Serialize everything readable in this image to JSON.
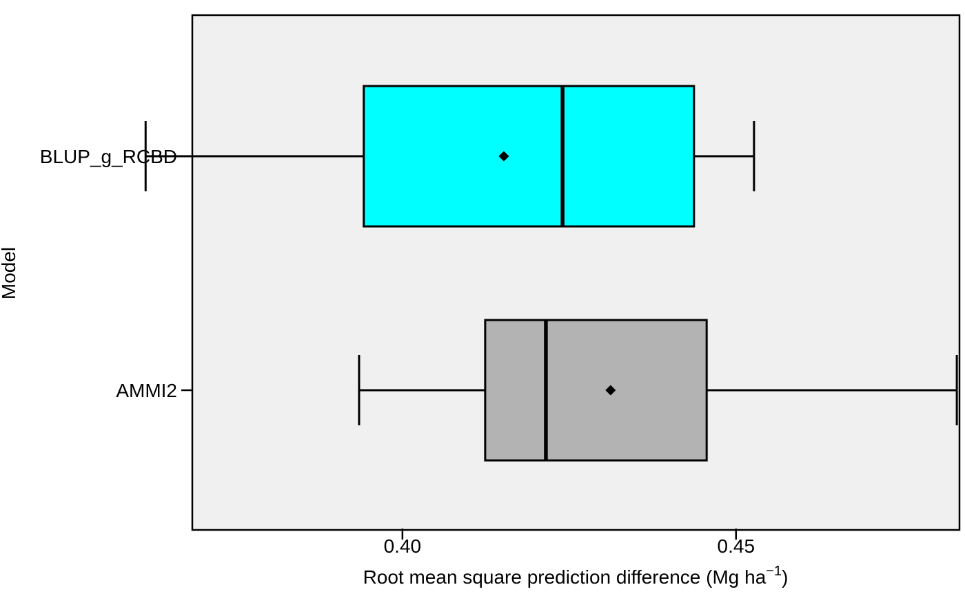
{
  "chart_data": {
    "type": "boxplot",
    "orientation": "horizontal",
    "xlabel": "Root mean square prediction difference (Mg ha",
    "xlabel_superscript": "−1",
    "xlabel_suffix": ")",
    "ylabel": "Model",
    "xlim": [
      0.3685,
      0.4835
    ],
    "x_ticks": [
      0.4,
      0.45
    ],
    "x_tick_labels": [
      "0.40",
      "0.45"
    ],
    "grid": false,
    "panel_background": "#f0f0f0",
    "series": [
      {
        "name": "BLUP_g_RCBD",
        "whisker_low": 0.3615,
        "q1": 0.3942,
        "median": 0.424,
        "q3": 0.4437,
        "whisker_high": 0.4527,
        "mean": 0.4152,
        "color": "#00ffff"
      },
      {
        "name": "AMMI2",
        "whisker_low": 0.3935,
        "q1": 0.4124,
        "median": 0.4215,
        "q3": 0.4456,
        "whisker_high": 0.4831,
        "mean": 0.4312,
        "color": "#b3b3b3"
      }
    ]
  }
}
